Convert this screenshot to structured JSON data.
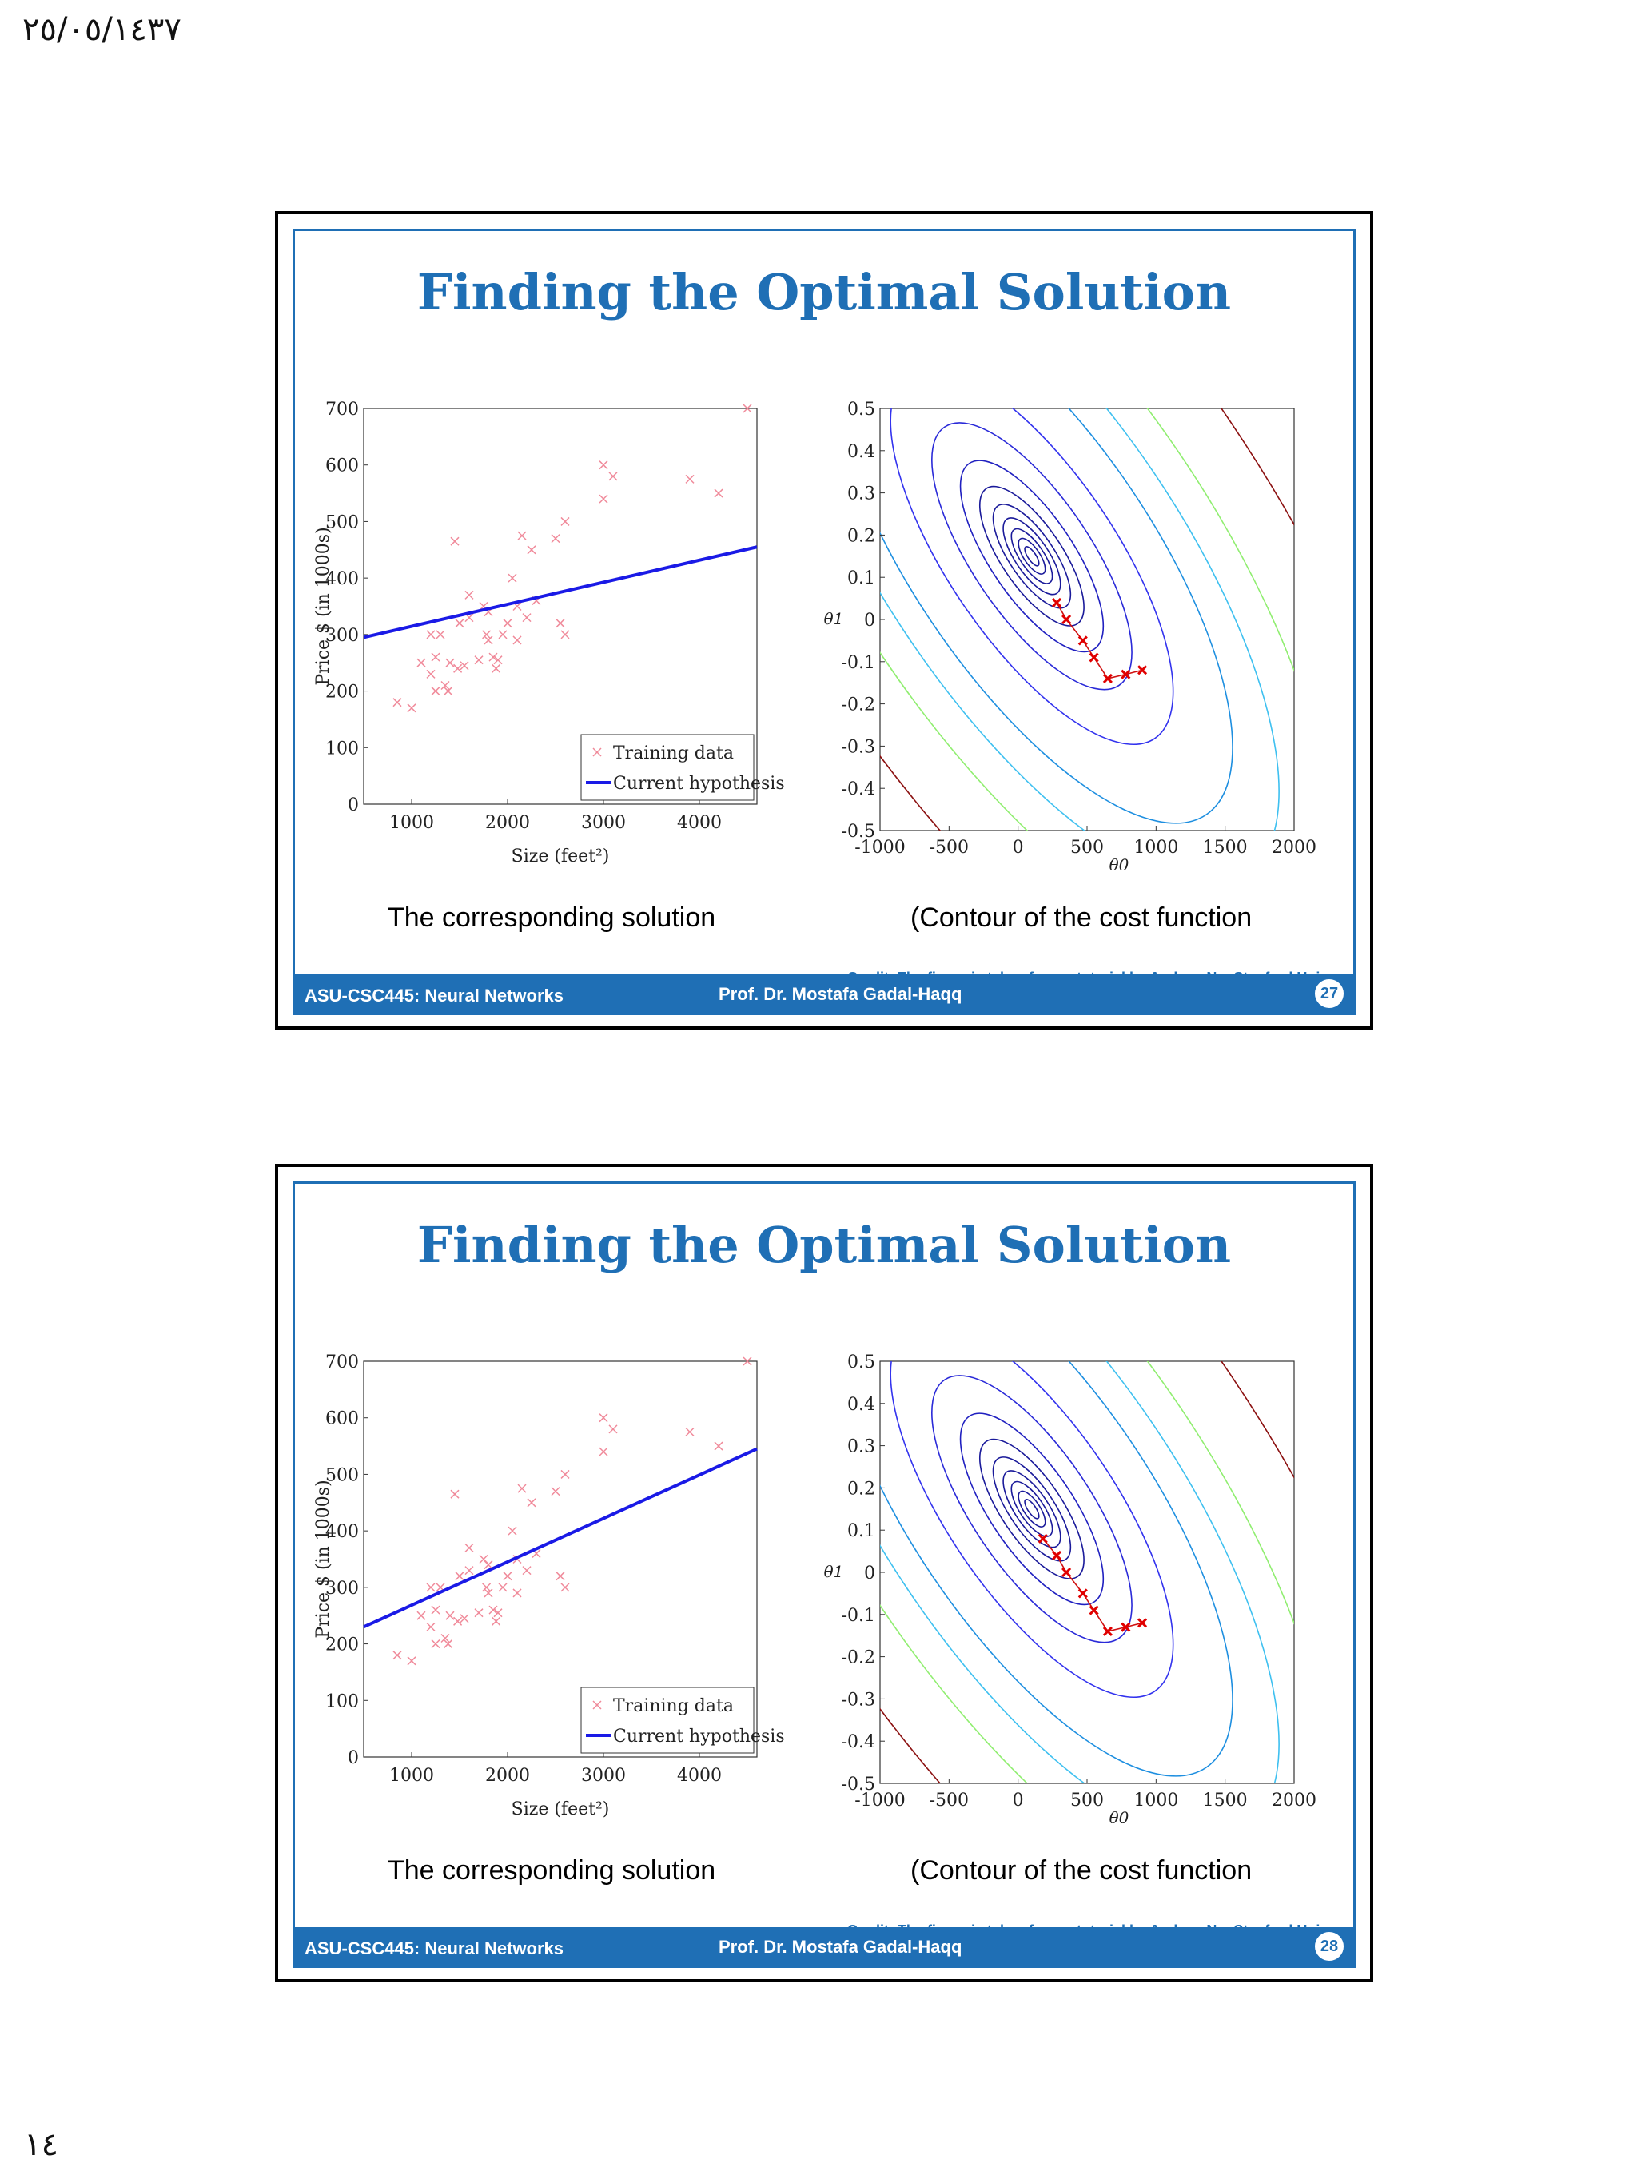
{
  "page": {
    "date": "٢٥/٠٥/١٤٣٧",
    "number": "١٤"
  },
  "slides": [
    {
      "title": "Finding the Optimal Solution",
      "caption_left": "The corresponding solution",
      "caption_right": "(Contour of the cost function",
      "credit": "Credit: The figure is taken from a tutorial by Andrew Ng, Stanford Univ.",
      "footer_course": "ASU-CSC445: Neural Networks",
      "footer_prof": "Prof. Dr. Mostafa Gadal-Haqq",
      "slide_number": "27"
    },
    {
      "title": "Finding the Optimal Solution",
      "caption_left": "The corresponding solution",
      "caption_right": "(Contour of the cost function",
      "credit": "Credit: The figure is taken from a tutorial by Andrew Ng, Stanford Univ.",
      "footer_course": "ASU-CSC445: Neural Networks",
      "footer_prof": "Prof. Dr. Mostafa Gadal-Haqq",
      "slide_number": "28"
    }
  ],
  "chart_data": [
    {
      "type": "scatter",
      "xlabel": "Size (feet²)",
      "ylabel": "Price $ (in 1000s)",
      "xlim": [
        500,
        4600
      ],
      "ylim": [
        0,
        700
      ],
      "xticks": [
        1000,
        2000,
        3000,
        4000
      ],
      "yticks": [
        0,
        100,
        200,
        300,
        400,
        500,
        600,
        700
      ],
      "legend": [
        "Training data",
        "Current hypothesis"
      ],
      "legend_position": "bottom-right",
      "points": [
        [
          850,
          180
        ],
        [
          1000,
          170
        ],
        [
          1100,
          250
        ],
        [
          1200,
          300
        ],
        [
          1200,
          230
        ],
        [
          1250,
          200
        ],
        [
          1250,
          260
        ],
        [
          1300,
          300
        ],
        [
          1350,
          210
        ],
        [
          1380,
          200
        ],
        [
          1400,
          250
        ],
        [
          1450,
          465
        ],
        [
          1480,
          240
        ],
        [
          1500,
          320
        ],
        [
          1550,
          245
        ],
        [
          1600,
          370
        ],
        [
          1600,
          330
        ],
        [
          1700,
          255
        ],
        [
          1750,
          350
        ],
        [
          1780,
          300
        ],
        [
          1800,
          290
        ],
        [
          1800,
          340
        ],
        [
          1850,
          260
        ],
        [
          1880,
          240
        ],
        [
          1900,
          255
        ],
        [
          1950,
          300
        ],
        [
          2000,
          320
        ],
        [
          2050,
          400
        ],
        [
          2100,
          350
        ],
        [
          2100,
          290
        ],
        [
          2150,
          475
        ],
        [
          2200,
          330
        ],
        [
          2250,
          450
        ],
        [
          2300,
          360
        ],
        [
          2500,
          470
        ],
        [
          2550,
          320
        ],
        [
          2600,
          500
        ],
        [
          2600,
          300
        ],
        [
          3000,
          540
        ],
        [
          3000,
          600
        ],
        [
          3100,
          580
        ],
        [
          3900,
          575
        ],
        [
          4200,
          550
        ],
        [
          4500,
          700
        ]
      ],
      "hypothesis": [
        [
          500,
          295
        ],
        [
          4600,
          455
        ]
      ]
    },
    {
      "type": "contour",
      "xlabel": "θ0",
      "ylabel": "θ1",
      "xlim": [
        -1000,
        2000
      ],
      "ylim": [
        -0.5,
        0.5
      ],
      "xticks": [
        -1000,
        -500,
        0,
        500,
        1000,
        1500,
        2000
      ],
      "yticks": [
        0.5,
        0.4,
        0.3,
        0.2,
        0.1,
        0,
        -0.1,
        -0.2,
        -0.3,
        -0.4,
        -0.5
      ],
      "center": [
        100,
        0.15
      ],
      "trajectory": [
        [
          900,
          -0.12
        ],
        [
          780,
          -0.13
        ],
        [
          650,
          -0.14
        ],
        [
          550,
          -0.09
        ],
        [
          470,
          -0.05
        ],
        [
          350,
          0.0
        ],
        [
          280,
          0.04
        ]
      ]
    },
    {
      "type": "scatter",
      "xlabel": "Size (feet²)",
      "ylabel": "Price $ (in 1000s)",
      "xlim": [
        500,
        4600
      ],
      "ylim": [
        0,
        700
      ],
      "xticks": [
        1000,
        2000,
        3000,
        4000
      ],
      "yticks": [
        0,
        100,
        200,
        300,
        400,
        500,
        600,
        700
      ],
      "legend": [
        "Training data",
        "Current hypothesis"
      ],
      "legend_position": "bottom-right",
      "points": [
        [
          850,
          180
        ],
        [
          1000,
          170
        ],
        [
          1100,
          250
        ],
        [
          1200,
          300
        ],
        [
          1200,
          230
        ],
        [
          1250,
          200
        ],
        [
          1250,
          260
        ],
        [
          1300,
          300
        ],
        [
          1350,
          210
        ],
        [
          1380,
          200
        ],
        [
          1400,
          250
        ],
        [
          1450,
          465
        ],
        [
          1480,
          240
        ],
        [
          1500,
          320
        ],
        [
          1550,
          245
        ],
        [
          1600,
          370
        ],
        [
          1600,
          330
        ],
        [
          1700,
          255
        ],
        [
          1750,
          350
        ],
        [
          1780,
          300
        ],
        [
          1800,
          290
        ],
        [
          1800,
          340
        ],
        [
          1850,
          260
        ],
        [
          1880,
          240
        ],
        [
          1900,
          255
        ],
        [
          1950,
          300
        ],
        [
          2000,
          320
        ],
        [
          2050,
          400
        ],
        [
          2100,
          350
        ],
        [
          2100,
          290
        ],
        [
          2150,
          475
        ],
        [
          2200,
          330
        ],
        [
          2250,
          450
        ],
        [
          2300,
          360
        ],
        [
          2500,
          470
        ],
        [
          2550,
          320
        ],
        [
          2600,
          500
        ],
        [
          2600,
          300
        ],
        [
          3000,
          540
        ],
        [
          3000,
          600
        ],
        [
          3100,
          580
        ],
        [
          3900,
          575
        ],
        [
          4200,
          550
        ],
        [
          4500,
          700
        ]
      ],
      "hypothesis": [
        [
          500,
          230
        ],
        [
          4600,
          545
        ]
      ]
    },
    {
      "type": "contour",
      "xlabel": "θ0",
      "ylabel": "θ1",
      "xlim": [
        -1000,
        2000
      ],
      "ylim": [
        -0.5,
        0.5
      ],
      "xticks": [
        -1000,
        -500,
        0,
        500,
        1000,
        1500,
        2000
      ],
      "yticks": [
        0.5,
        0.4,
        0.3,
        0.2,
        0.1,
        0,
        -0.1,
        -0.2,
        -0.3,
        -0.4,
        -0.5
      ],
      "center": [
        100,
        0.15
      ],
      "trajectory": [
        [
          900,
          -0.12
        ],
        [
          780,
          -0.13
        ],
        [
          650,
          -0.14
        ],
        [
          550,
          -0.09
        ],
        [
          470,
          -0.05
        ],
        [
          350,
          0.0
        ],
        [
          280,
          0.04
        ],
        [
          180,
          0.08
        ]
      ]
    }
  ]
}
